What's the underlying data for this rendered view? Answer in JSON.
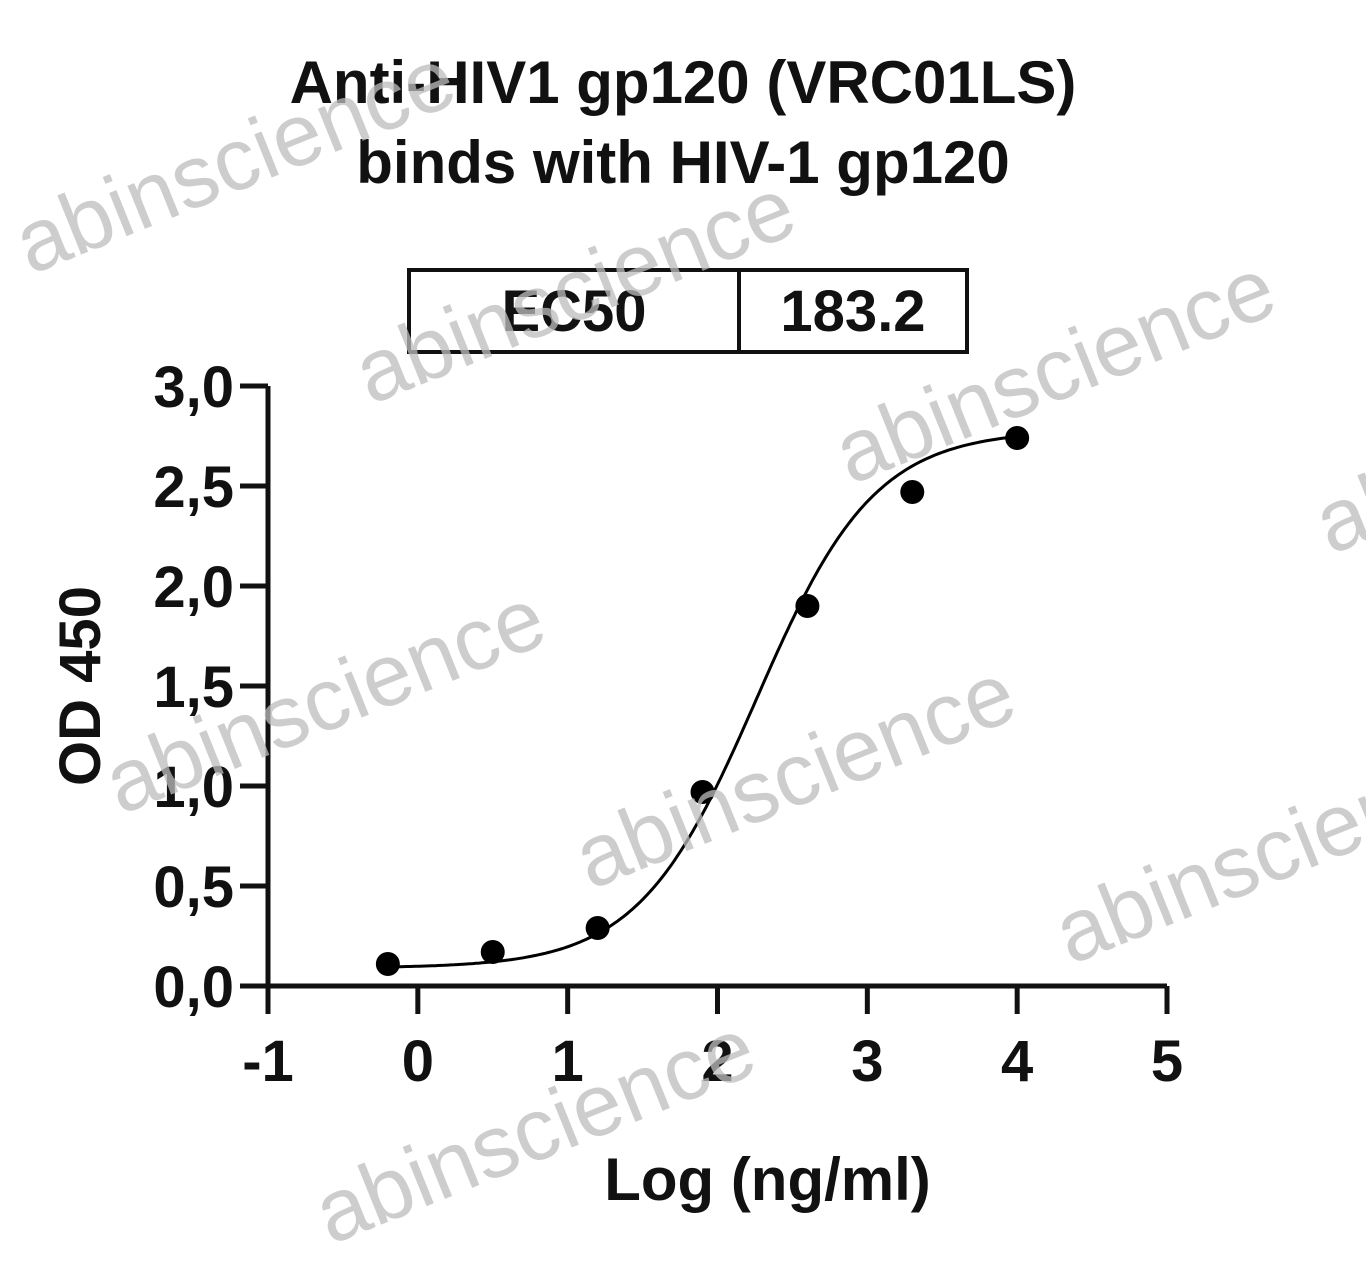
{
  "chart_data": {
    "type": "scatter",
    "title_line1": "Anti-HIV1 gp120 (VRC01LS)",
    "title_line2": "binds with HIV-1 gp120",
    "xlabel": "Log (ng/ml)",
    "ylabel": "OD 450",
    "xlim": [
      -1,
      5
    ],
    "ylim": [
      0,
      3
    ],
    "x_ticks": [
      "-1",
      "0",
      "1",
      "2",
      "3",
      "4",
      "5"
    ],
    "y_ticks": [
      "0,0",
      "0,5",
      "1,0",
      "1,5",
      "2,0",
      "2,5",
      "3,0"
    ],
    "x": [
      -0.2,
      0.5,
      1.2,
      1.9,
      2.6,
      3.3,
      4.0
    ],
    "y": [
      0.11,
      0.17,
      0.29,
      0.97,
      1.9,
      2.47,
      2.74
    ],
    "fit": "four-parameter logistic curve",
    "ec50_label": "EC50",
    "ec50_value": "183.2",
    "grid": false,
    "point_color": "#000000",
    "line_color": "#000000"
  },
  "watermark_text": "abinscience"
}
